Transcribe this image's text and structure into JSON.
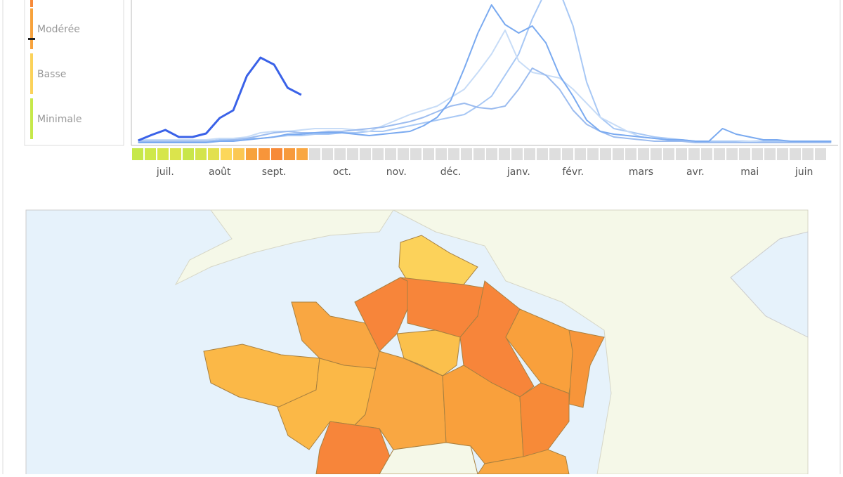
{
  "legend": {
    "levels": [
      {
        "label": "Modérée",
        "color": "#f7a23c"
      },
      {
        "label": "Basse",
        "color": "#fbd25a"
      },
      {
        "label": "Minimale",
        "color": "#c6e84a"
      }
    ]
  },
  "chart_data": {
    "type": "line",
    "categories": [
      null,
      null,
      "juil.",
      null,
      null,
      null,
      "août",
      null,
      null,
      null,
      "sept.",
      null,
      null,
      null,
      null,
      "oct.",
      null,
      null,
      null,
      "nov.",
      null,
      null,
      null,
      "déc.",
      null,
      null,
      null,
      null,
      "janv.",
      null,
      null,
      null,
      "févr.",
      null,
      null,
      null,
      null,
      "mars",
      null,
      null,
      null,
      "avr.",
      null,
      null,
      null,
      "mai",
      null,
      null,
      null,
      "juin",
      null,
      null
    ],
    "ylim": [
      0,
      110
    ],
    "series": [
      {
        "color": "#a8c8f5",
        "values": [
          2,
          2,
          2,
          3,
          3,
          3,
          4,
          4,
          5,
          5,
          6,
          7,
          7,
          8,
          8,
          9,
          9,
          10,
          10,
          12,
          14,
          16,
          18,
          20,
          22,
          28,
          35,
          50,
          65,
          90,
          110,
          110,
          85,
          45,
          20,
          12,
          10,
          8,
          6,
          5,
          4,
          3,
          3,
          3,
          3,
          3,
          3,
          3,
          3,
          3,
          3,
          3
        ]
      },
      {
        "color": "#c7dcf7",
        "values": [
          4,
          4,
          4,
          4,
          4,
          4,
          5,
          5,
          6,
          9,
          10,
          10,
          11,
          12,
          12,
          12,
          11,
          10,
          14,
          18,
          22,
          25,
          28,
          34,
          40,
          52,
          65,
          82,
          60,
          52,
          50,
          48,
          40,
          30,
          20,
          15,
          10,
          6,
          5,
          4,
          3,
          3,
          2,
          2,
          2,
          3,
          2,
          2,
          2,
          2,
          2,
          3
        ]
      },
      {
        "color": "#9cbcef",
        "values": [
          3,
          3,
          3,
          3,
          3,
          3,
          3,
          4,
          5,
          7,
          9,
          10,
          9,
          9,
          10,
          10,
          11,
          12,
          13,
          15,
          17,
          20,
          24,
          28,
          30,
          27,
          26,
          28,
          40,
          55,
          50,
          40,
          25,
          15,
          10,
          6,
          5,
          4,
          3,
          3,
          3,
          2,
          2,
          2,
          2,
          2,
          2,
          2,
          2,
          2,
          2,
          2
        ]
      },
      {
        "color": "#7aaaf0",
        "values": [
          2,
          2,
          2,
          2,
          2,
          2,
          3,
          3,
          4,
          5,
          6,
          8,
          8,
          9,
          9,
          9,
          8,
          7,
          8,
          9,
          10,
          14,
          20,
          32,
          55,
          80,
          100,
          86,
          80,
          85,
          73,
          50,
          35,
          18,
          10,
          8,
          7,
          6,
          5,
          4,
          4,
          3,
          3,
          12,
          8,
          6,
          4,
          4,
          3,
          3,
          3,
          3
        ]
      },
      {
        "color": "#3a62e8",
        "values": [
          3.5,
          7.5,
          11,
          6,
          6,
          8.5,
          19.5,
          25,
          49.5,
          62.5,
          57.5,
          41,
          36,
          null,
          null,
          null,
          null,
          null,
          null,
          null,
          null,
          null,
          null,
          null,
          null,
          null,
          null,
          null,
          null,
          null,
          null,
          null,
          null,
          null,
          null,
          null,
          null,
          null,
          null,
          null,
          null,
          null,
          null,
          null,
          null,
          null,
          null,
          null,
          null,
          null,
          null,
          null
        ]
      }
    ],
    "level_strip": [
      "#c6e84a",
      "#cfe84a",
      "#d6e64a",
      "#dbe44c",
      "#c9e64a",
      "#d4e44c",
      "#e2e04e",
      "#fcd75a",
      "#fbc853",
      "#f7a23c",
      "#f7953a",
      "#f78a38",
      "#f79a3c",
      "#f9a742"
    ],
    "level_strip_empty": "#dedede"
  }
}
